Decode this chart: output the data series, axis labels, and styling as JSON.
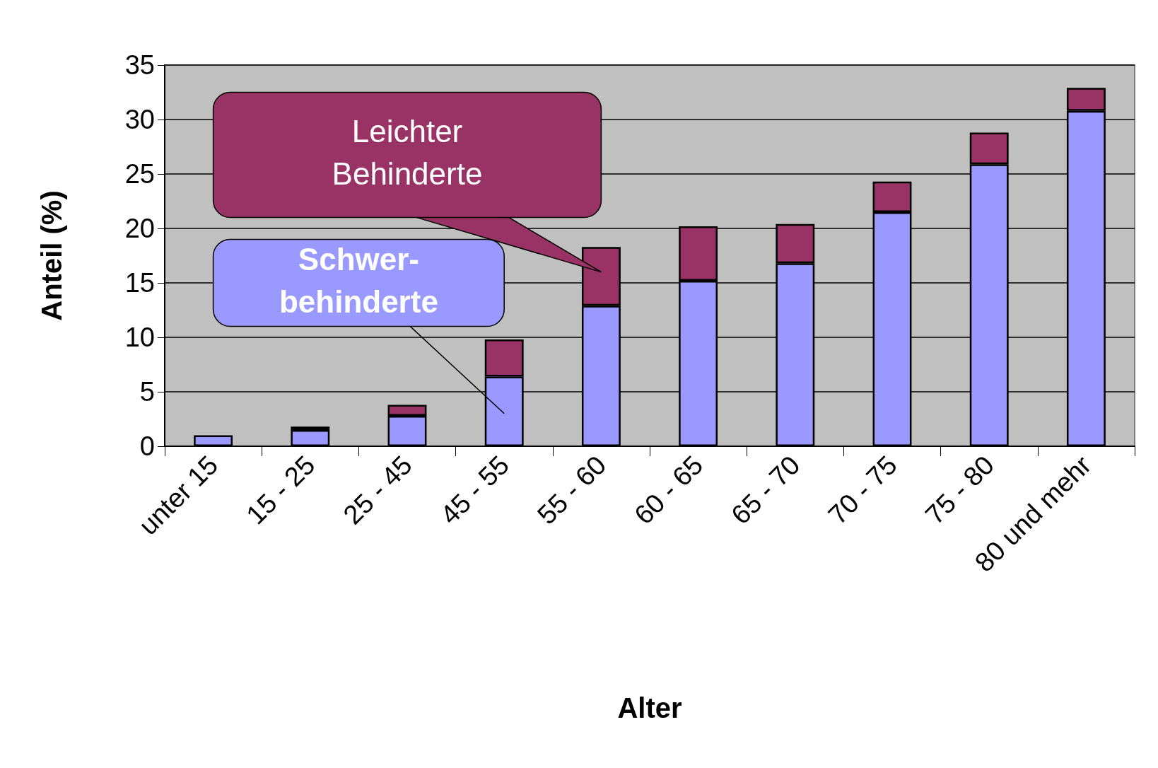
{
  "chart_data": {
    "type": "bar",
    "stacked": true,
    "xlabel": "Alter",
    "ylabel": "Anteil (%)",
    "categories": [
      "unter 15",
      "15 - 25",
      "25 - 45",
      "45 - 55",
      "55 - 60",
      "60 - 65",
      "65 - 70",
      "70 - 75",
      "75 - 80",
      "80 und mehr"
    ],
    "series": [
      {
        "name": "Schwer-behinderte",
        "color": "#9999ff",
        "values": [
          1.0,
          1.5,
          2.8,
          6.4,
          12.9,
          15.2,
          16.8,
          21.5,
          25.9,
          30.8
        ]
      },
      {
        "name": "Leichter Behinderte",
        "color": "#993366",
        "values": [
          null,
          0.3,
          1.0,
          3.4,
          5.4,
          5.0,
          3.6,
          2.8,
          2.9,
          2.1
        ]
      }
    ],
    "ylim": [
      0,
      35
    ],
    "yticks": [
      0,
      5,
      10,
      15,
      20,
      25,
      30,
      35
    ],
    "grid": "y",
    "legend": false
  }
}
